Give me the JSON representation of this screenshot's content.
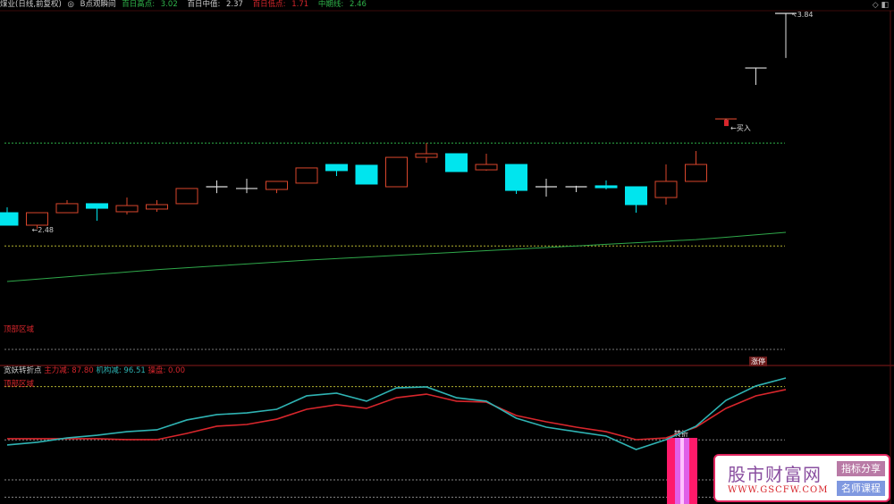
{
  "header": {
    "stock_title": "煤业(日线,前复权)",
    "indicator_name": "B点观瞬间",
    "metrics": [
      {
        "label": "百日高点:",
        "value": "3.02",
        "color": "#2fb34a"
      },
      {
        "label": "百日中值:",
        "value": "2.37",
        "color": "#cccccc"
      },
      {
        "label": "百日低点:",
        "value": "1.71",
        "color": "#d8262c"
      },
      {
        "label": "中期线:",
        "value": "2.46",
        "color": "#2fb34a"
      }
    ],
    "icons": [
      "settings-icon",
      "window-icon"
    ]
  },
  "main_chart": {
    "up_color": "#d8462c",
    "down_color": "#00e5ee",
    "ma_color": "#2fa84a",
    "high_label": "3.84",
    "low_label": "2.48",
    "buy_label": "买入",
    "buy_marker": "B",
    "zone_label": "顶部区域",
    "limit_up_tag": "涨停",
    "levels": {
      "hundred_day_high": 3.02,
      "hundred_day_mid": 2.37
    },
    "candles": [
      [
        2.58,
        2.614,
        2.501,
        2.501
      ],
      [
        2.501,
        2.58,
        2.478,
        2.58
      ],
      [
        2.58,
        2.659,
        2.58,
        2.637
      ],
      [
        2.637,
        2.637,
        2.529,
        2.608
      ],
      [
        2.586,
        2.676,
        2.569,
        2.625
      ],
      [
        2.603,
        2.659,
        2.586,
        2.631
      ],
      [
        2.637,
        2.733,
        2.637,
        2.733
      ],
      [
        2.744,
        2.784,
        2.704,
        2.744
      ],
      [
        2.733,
        2.795,
        2.704,
        2.733
      ],
      [
        2.727,
        2.778,
        2.704,
        2.778
      ],
      [
        2.767,
        2.863,
        2.767,
        2.863
      ],
      [
        2.885,
        2.885,
        2.812,
        2.846
      ],
      [
        2.88,
        2.88,
        2.761,
        2.761
      ],
      [
        2.744,
        2.93,
        2.744,
        2.93
      ],
      [
        2.93,
        3.021,
        2.896,
        2.953
      ],
      [
        2.953,
        2.953,
        2.84,
        2.84
      ],
      [
        2.851,
        2.953,
        2.846,
        2.885
      ],
      [
        2.885,
        2.885,
        2.699,
        2.721
      ],
      [
        2.744,
        2.795,
        2.682,
        2.744
      ],
      [
        2.744,
        2.75,
        2.71,
        2.75
      ],
      [
        2.75,
        2.784,
        2.727,
        2.738
      ],
      [
        2.744,
        2.744,
        2.58,
        2.631
      ],
      [
        2.676,
        2.885,
        2.631,
        2.778
      ],
      [
        2.778,
        2.97,
        2.778,
        2.885
      ],
      [
        3.173,
        3.173,
        3.139,
        3.173
      ],
      [
        3.495,
        3.495,
        3.388,
        3.495
      ],
      [
        3.84,
        3.84,
        3.558,
        3.84
      ]
    ],
    "ma": [
      2.145,
      2.16,
      2.175,
      2.19,
      2.205,
      2.22,
      2.232,
      2.244,
      2.256,
      2.268,
      2.28,
      2.29,
      2.3,
      2.31,
      2.32,
      2.33,
      2.34,
      2.35,
      2.36,
      2.37,
      2.38,
      2.39,
      2.4,
      2.41,
      2.425,
      2.44,
      2.456
    ]
  },
  "sub_chart": {
    "title": "宽妖转折点",
    "metrics": [
      {
        "label": "主力减:",
        "value": "87.80",
        "color": "#d8262c"
      },
      {
        "label": "机构减:",
        "value": "96.51",
        "color": "#2fb3b3"
      },
      {
        "label": "操盘:",
        "value": "0.00",
        "color": "#d8262c"
      }
    ],
    "zone_label": "顶部区域",
    "signal_label": "转折",
    "levels": [
      90,
      50,
      20,
      7
    ],
    "institution": [
      46.2,
      48.2,
      51.5,
      53.5,
      56.2,
      57.6,
      65.0,
      69.0,
      70.3,
      73.0,
      83.1,
      85.1,
      79.1,
      89.1,
      89.8,
      81.7,
      79.1,
      66.3,
      59.6,
      56.2,
      52.9,
      42.8,
      50.2,
      60.3,
      79.7,
      90.5,
      96.5
    ],
    "main_force": [
      50.9,
      50.9,
      50.9,
      50.9,
      50.2,
      50.2,
      54.9,
      60.3,
      61.6,
      65.6,
      73.0,
      76.4,
      73.7,
      81.7,
      84.4,
      79.1,
      78.4,
      68.3,
      63.6,
      59.6,
      56.2,
      50.2,
      51.5,
      59.6,
      73.7,
      83.1,
      87.8
    ],
    "institution_color": "#2fb3b3",
    "main_force_color": "#d8262c",
    "signal_bars_at": [
      22
    ]
  },
  "watermark": {
    "title": "股市财富网",
    "url": "WWW.GSCFW.COM",
    "tag1": "指标分享",
    "tag2": "名师课程"
  }
}
